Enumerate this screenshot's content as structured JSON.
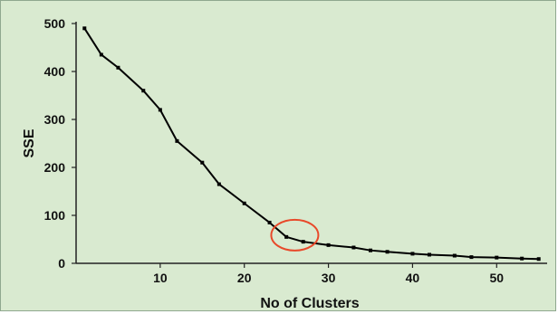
{
  "chart_data": {
    "type": "line",
    "title": "",
    "xlabel": "No of Clusters",
    "ylabel": "SSE",
    "xlim": [
      0,
      56
    ],
    "ylim": [
      0,
      500
    ],
    "x_ticks": [
      10,
      20,
      30,
      40,
      50
    ],
    "y_ticks": [
      0,
      100,
      200,
      300,
      400,
      500
    ],
    "grid": false,
    "series": [
      {
        "points": [
          [
            1,
            490
          ],
          [
            3,
            435
          ],
          [
            5,
            408
          ],
          [
            8,
            360
          ],
          [
            10,
            320
          ],
          [
            12,
            255
          ],
          [
            15,
            210
          ],
          [
            17,
            165
          ],
          [
            20,
            125
          ],
          [
            23,
            85
          ],
          [
            25,
            55
          ],
          [
            27,
            45
          ],
          [
            30,
            38
          ],
          [
            33,
            33
          ],
          [
            35,
            27
          ],
          [
            37,
            24
          ],
          [
            40,
            20
          ],
          [
            42,
            18
          ],
          [
            45,
            16
          ],
          [
            47,
            13
          ],
          [
            50,
            12
          ],
          [
            53,
            10
          ],
          [
            55,
            9
          ]
        ]
      }
    ],
    "annotations": [
      {
        "type": "circle",
        "x": 26,
        "y": 55
      }
    ],
    "colors": {
      "background": "#d9ead0",
      "line": "#000000",
      "annotation": "#e8492a"
    }
  }
}
